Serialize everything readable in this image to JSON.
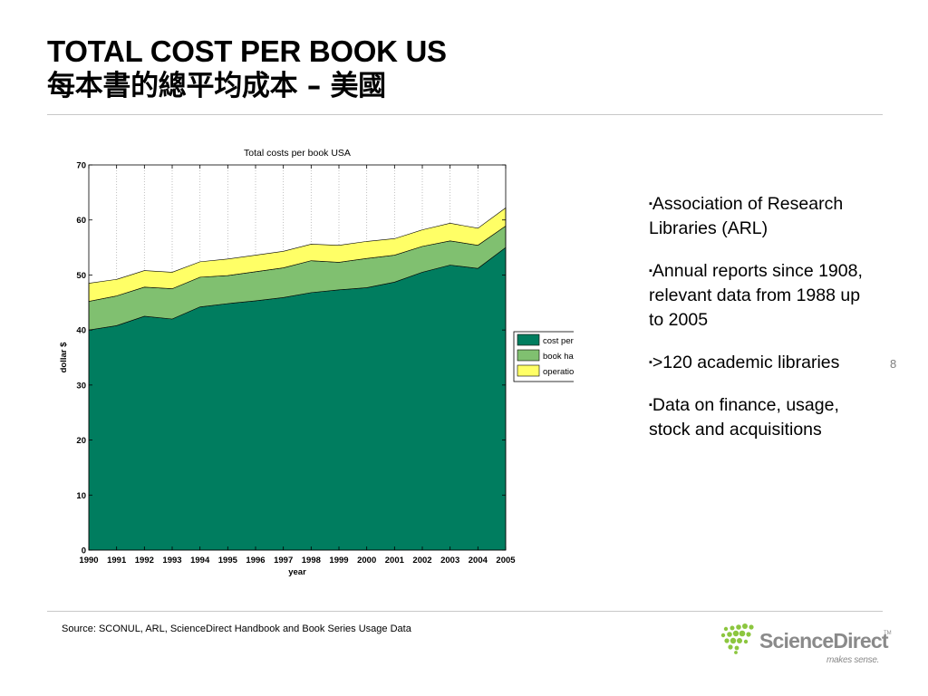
{
  "slide": {
    "title_en": "TOTAL COST PER BOOK US",
    "title_zh": "每本書的總平均成本 – 美國",
    "page_number": "8",
    "source": "Source: SCONUL, ARL, ScienceDirect Handbook and Book Series Usage Data"
  },
  "bullets": [
    "Association of Research Libraries (ARL)",
    "Annual reports since 1908, relevant data from 1988 up to 2005",
    ">120 academic libraries",
    "Data on finance, usage, stock and acquisitions"
  ],
  "bullet_marker": "▪",
  "logo": {
    "name": "ScienceDirect",
    "tm": "TM",
    "tagline": "makes sense.",
    "dot_color": "#8cc63f",
    "text_color": "#8a8a8a"
  },
  "chart_data": {
    "type": "area",
    "stacked": true,
    "title": "Total costs per book USA",
    "xlabel": "year",
    "ylabel": "dollar $",
    "categories": [
      "1990",
      "1991",
      "1992",
      "1993",
      "1994",
      "1995",
      "1996",
      "1997",
      "1998",
      "1999",
      "2000",
      "2001",
      "2002",
      "2003",
      "2004",
      "2005"
    ],
    "series": [
      {
        "name": "cost per book",
        "color": "#007d5f",
        "values": [
          40.0,
          40.8,
          42.5,
          42.0,
          44.2,
          44.8,
          45.3,
          45.9,
          46.8,
          47.3,
          47.7,
          48.7,
          50.5,
          51.8,
          51.2,
          55.0
        ]
      },
      {
        "name": "book handling",
        "color": "#80c070",
        "values": [
          5.2,
          5.4,
          5.3,
          5.5,
          5.4,
          5.1,
          5.3,
          5.4,
          5.8,
          5.0,
          5.3,
          4.9,
          4.7,
          4.4,
          4.2,
          3.9
        ]
      },
      {
        "name": "operational cost",
        "color": "#ffff66",
        "values": [
          3.3,
          3.0,
          3.0,
          3.0,
          2.8,
          3.0,
          3.0,
          3.0,
          3.0,
          3.1,
          3.1,
          3.0,
          3.0,
          3.2,
          3.1,
          3.3
        ]
      }
    ],
    "ylim": [
      0,
      70
    ],
    "yticks": [
      0,
      10,
      20,
      30,
      40,
      50,
      60,
      70
    ],
    "grid": false,
    "vertical_gridlines": true,
    "legend_position": "right"
  }
}
